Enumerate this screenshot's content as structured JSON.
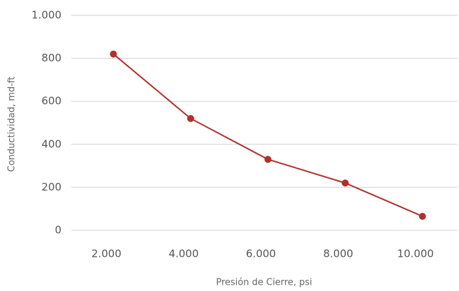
{
  "chart_data": {
    "type": "line",
    "x_label": "Presión de Cierre, psi",
    "y_label": "Conductividad, md-ft",
    "categories": [
      "2.000",
      "4.000",
      "6.000",
      "8.000",
      "10.000"
    ],
    "series": [
      {
        "name": "Conductividad",
        "color": "#b0302a",
        "values": [
          820,
          520,
          330,
          220,
          65
        ]
      }
    ],
    "ylim": [
      0,
      1000
    ],
    "yticks": [
      0,
      200,
      400,
      600,
      800,
      {
        "value": 1000,
        "label": "1.000"
      }
    ],
    "grid": true
  }
}
